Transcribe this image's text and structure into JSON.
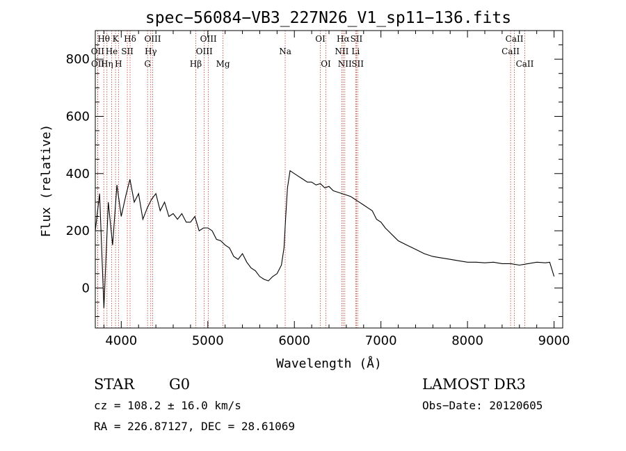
{
  "chart_data": {
    "type": "line",
    "title": "spec−56084−VB3_227N26_V1_sp11−136.fits",
    "xlabel": "Wavelength (Å)",
    "ylabel": "Flux (relative)",
    "xlim": [
      3700,
      9100
    ],
    "ylim": [
      -140,
      900
    ],
    "x_ticks": [
      4000,
      5000,
      6000,
      7000,
      8000,
      9000
    ],
    "y_ticks": [
      0,
      200,
      400,
      600,
      800
    ],
    "series": [
      {
        "name": "spectrum",
        "color": "#000000",
        "x": [
          3700,
          3750,
          3800,
          3850,
          3900,
          3950,
          4000,
          4050,
          4100,
          4150,
          4200,
          4250,
          4300,
          4350,
          4400,
          4450,
          4500,
          4550,
          4600,
          4650,
          4700,
          4750,
          4800,
          4850,
          4900,
          4950,
          5000,
          5050,
          5100,
          5150,
          5200,
          5250,
          5300,
          5350,
          5400,
          5450,
          5500,
          5550,
          5600,
          5650,
          5700,
          5750,
          5800,
          5850,
          5880,
          5900,
          5920,
          5950,
          6000,
          6050,
          6100,
          6150,
          6200,
          6250,
          6300,
          6350,
          6400,
          6450,
          6500,
          6550,
          6600,
          6650,
          6700,
          6750,
          6800,
          6850,
          6900,
          6950,
          7000,
          7050,
          7100,
          7150,
          7200,
          7300,
          7400,
          7500,
          7600,
          7700,
          7800,
          7900,
          8000,
          8100,
          8200,
          8300,
          8400,
          8500,
          8600,
          8700,
          8800,
          8900,
          8950,
          9000
        ],
        "y": [
          200,
          330,
          -70,
          300,
          150,
          360,
          250,
          320,
          380,
          300,
          330,
          240,
          280,
          310,
          330,
          270,
          300,
          250,
          260,
          240,
          260,
          230,
          230,
          250,
          200,
          210,
          210,
          200,
          170,
          165,
          150,
          140,
          110,
          100,
          120,
          90,
          70,
          60,
          40,
          30,
          25,
          40,
          50,
          80,
          140,
          250,
          350,
          410,
          400,
          390,
          380,
          370,
          370,
          360,
          365,
          350,
          355,
          340,
          335,
          330,
          325,
          320,
          310,
          300,
          290,
          280,
          270,
          240,
          230,
          210,
          195,
          180,
          165,
          150,
          135,
          120,
          110,
          105,
          100,
          95,
          90,
          90,
          88,
          90,
          85,
          85,
          80,
          85,
          90,
          88,
          90,
          40
        ]
      }
    ],
    "line_markers": [
      {
        "label": "Hθ",
        "x": 3798,
        "row": 0
      },
      {
        "label": "OII",
        "x": 3727,
        "row": 1
      },
      {
        "label": "OII",
        "x": 3729,
        "row": 2
      },
      {
        "label": "K",
        "x": 3934,
        "row": 0
      },
      {
        "label": "He",
        "x": 3889,
        "row": 1
      },
      {
        "label": "Hη",
        "x": 3835,
        "row": 2
      },
      {
        "label": "H",
        "x": 3968,
        "row": 2
      },
      {
        "label": "Hδ",
        "x": 4102,
        "row": 0
      },
      {
        "label": "SII",
        "x": 4070,
        "row": 1
      },
      {
        "label": "OIII",
        "x": 4363,
        "row": 0
      },
      {
        "label": "Hγ",
        "x": 4341,
        "row": 1
      },
      {
        "label": "G",
        "x": 4304,
        "row": 2
      },
      {
        "label": "Hβ",
        "x": 4861,
        "row": 2
      },
      {
        "label": "OIII",
        "x": 5007,
        "row": 0
      },
      {
        "label": "OIII",
        "x": 4959,
        "row": 1
      },
      {
        "label": "Mg",
        "x": 5175,
        "row": 2
      },
      {
        "label": "Na",
        "x": 5894,
        "row": 1
      },
      {
        "label": "OI",
        "x": 6300,
        "row": 0
      },
      {
        "label": "OI",
        "x": 6364,
        "row": 2
      },
      {
        "label": "Hα",
        "x": 6563,
        "row": 0
      },
      {
        "label": "NII",
        "x": 6548,
        "row": 1
      },
      {
        "label": "NII",
        "x": 6583,
        "row": 2
      },
      {
        "label": "SII",
        "x": 6717,
        "row": 0
      },
      {
        "label": "Li",
        "x": 6708,
        "row": 1
      },
      {
        "label": "SII",
        "x": 6731,
        "row": 2
      },
      {
        "label": "CaII",
        "x": 8542,
        "row": 0
      },
      {
        "label": "CaII",
        "x": 8498,
        "row": 1
      },
      {
        "label": "CaII",
        "x": 8662,
        "row": 2
      }
    ]
  },
  "info": {
    "class": "STAR",
    "subclass": "G0",
    "survey": "LAMOST DR3",
    "cz": "cz = 108.2 ± 16.0 km/s",
    "obs_date": "Obs−Date: 20120605",
    "coords": "RA = 226.87127, DEC =  28.61069"
  }
}
